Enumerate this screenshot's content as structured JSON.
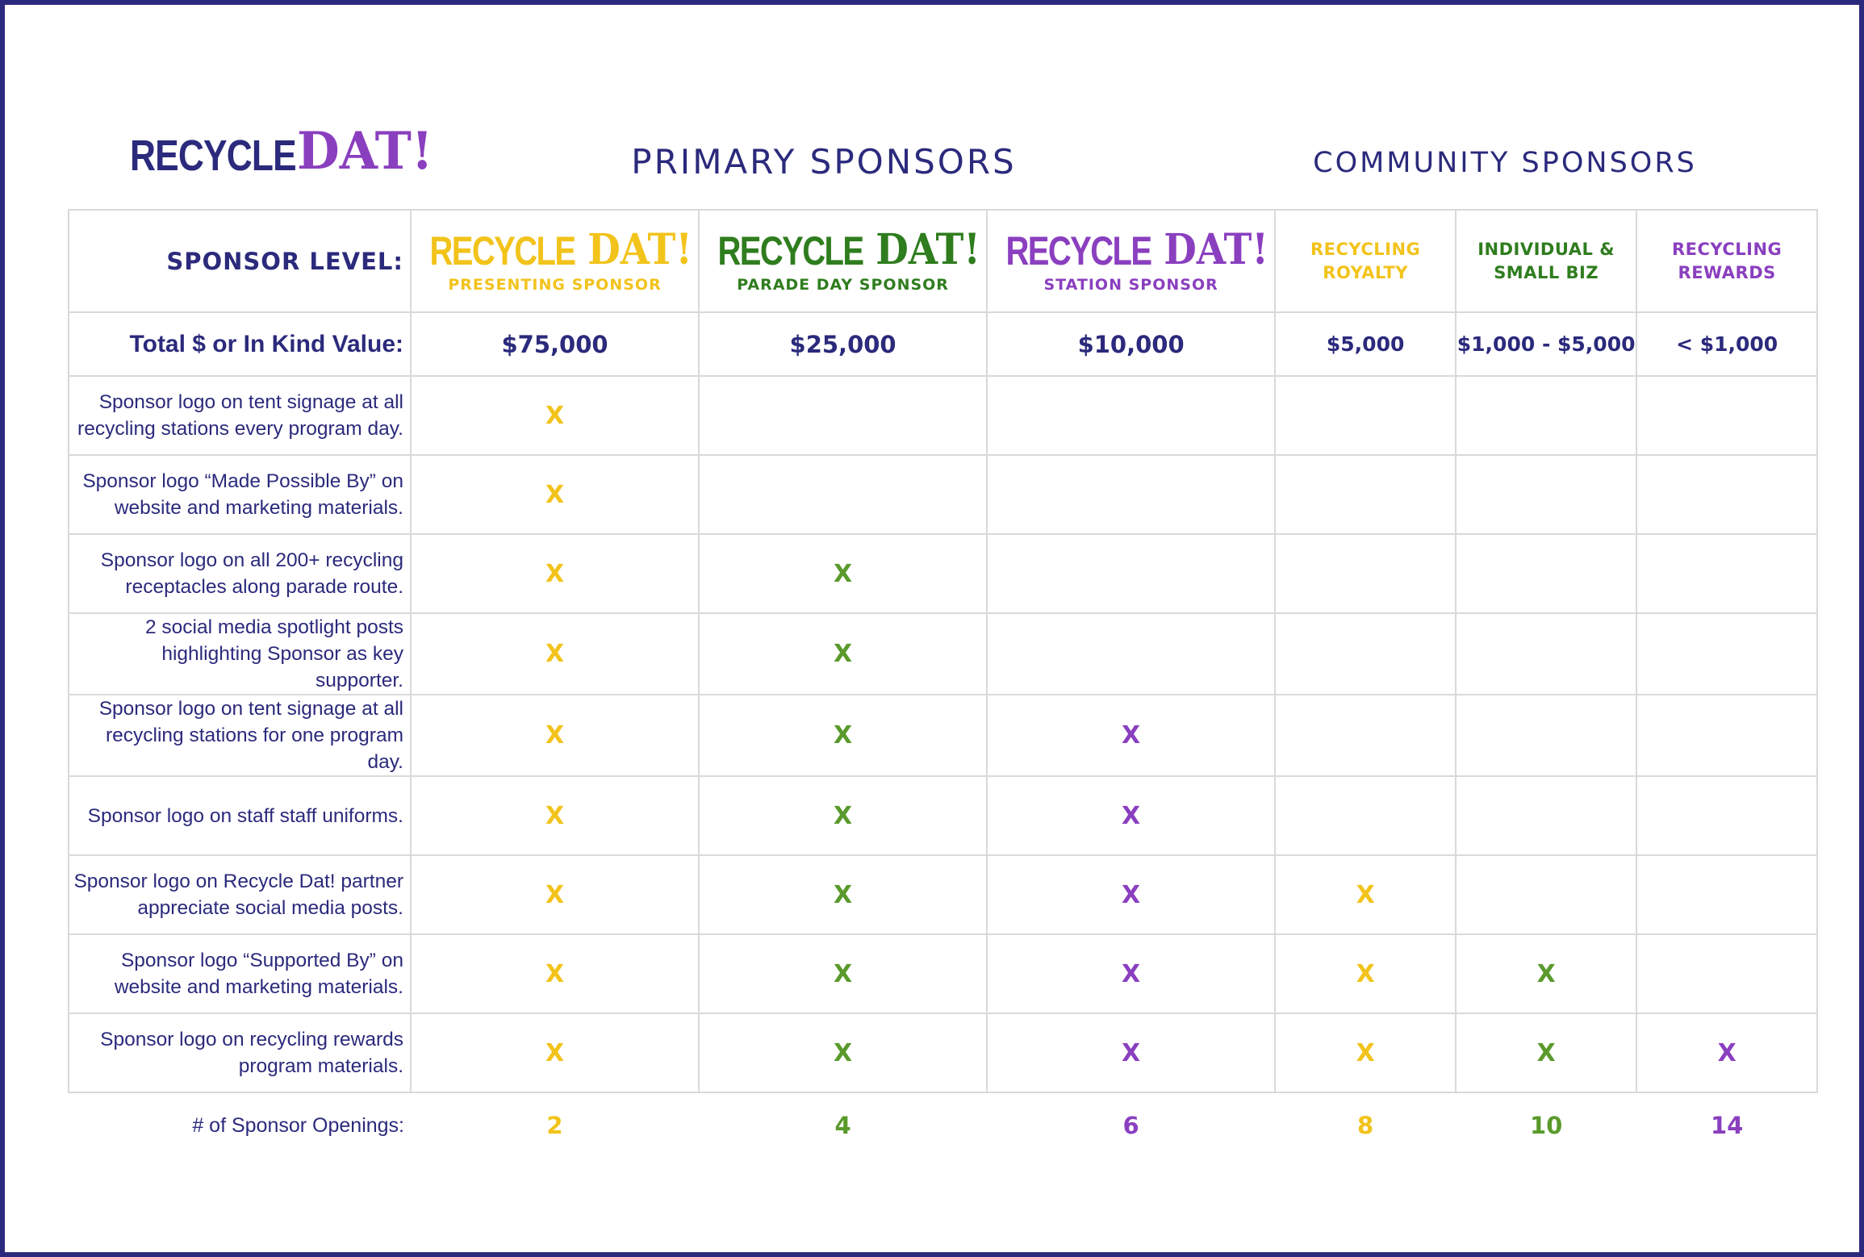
{
  "colors": {
    "navy": "#2b2a7c",
    "gold": "#f2c31b",
    "green": "#5a9a2c",
    "dark_green": "#2f7d1e",
    "purple": "#8a3fbf"
  },
  "logo": {
    "part1": "RECYCLE",
    "part2": "DAT!"
  },
  "headers": {
    "primary": "PRIMARY SPONSORS",
    "community": "COMMUNITY SPONSORS"
  },
  "labels": {
    "sponsor_level": "SPONSOR LEVEL:",
    "total_value": "Total $ or In Kind Value:",
    "openings": "# of Sponsor Openings:"
  },
  "tiers": [
    {
      "name": "PRESENTING SPONSOR",
      "price": "$75,000",
      "openings": "2",
      "color": "#f2c31b"
    },
    {
      "name": "PARADE DAY SPONSOR",
      "price": "$25,000",
      "openings": "4",
      "color": "#5a9a2c"
    },
    {
      "name": "STATION SPONSOR",
      "price": "$10,000",
      "openings": "6",
      "color": "#8a3fbf"
    },
    {
      "name_line1": "RECYCLING",
      "name_line2": "ROYALTY",
      "price": "$5,000",
      "openings": "8",
      "color": "#f2c31b"
    },
    {
      "name_line1": "INDIVIDUAL &",
      "name_line2": "SMALL BIZ",
      "price": "$1,000 - $5,000",
      "openings": "10",
      "color": "#2f7d1e"
    },
    {
      "name_line1": "RECYCLING",
      "name_line2": "REWARDS",
      "price": "< $1,000",
      "openings": "14",
      "color": "#8a3fbf"
    }
  ],
  "mark_symbol": "X",
  "benefits": [
    {
      "line1": "Sponsor logo on tent signage at all",
      "line2": "recycling stations every program day.",
      "included": [
        true,
        false,
        false,
        false,
        false,
        false
      ]
    },
    {
      "line1": "Sponsor logo “Made Possible By” on",
      "line2": "website and marketing materials.",
      "included": [
        true,
        false,
        false,
        false,
        false,
        false
      ]
    },
    {
      "line1": "Sponsor logo on all 200+ recycling",
      "line2": "receptacles along parade route.",
      "included": [
        true,
        true,
        false,
        false,
        false,
        false
      ]
    },
    {
      "line1": "2 social media spotlight posts",
      "line2": "highlighting Sponsor as key supporter.",
      "included": [
        true,
        true,
        false,
        false,
        false,
        false
      ]
    },
    {
      "line1": "Sponsor logo on tent signage at all",
      "line2": "recycling stations for one program day.",
      "included": [
        true,
        true,
        true,
        false,
        false,
        false
      ]
    },
    {
      "line1": "Sponsor logo on staff staff uniforms.",
      "line2": "",
      "included": [
        true,
        true,
        true,
        false,
        false,
        false
      ]
    },
    {
      "line1": "Sponsor logo on Recycle Dat! partner",
      "line2": "appreciate social media posts.",
      "included": [
        true,
        true,
        true,
        true,
        false,
        false
      ]
    },
    {
      "line1": "Sponsor logo “Supported By” on",
      "line2": "website and marketing materials.",
      "included": [
        true,
        true,
        true,
        true,
        true,
        false
      ]
    },
    {
      "line1": "Sponsor logo on recycling rewards",
      "line2": "program materials.",
      "included": [
        true,
        true,
        true,
        true,
        true,
        true
      ]
    }
  ]
}
